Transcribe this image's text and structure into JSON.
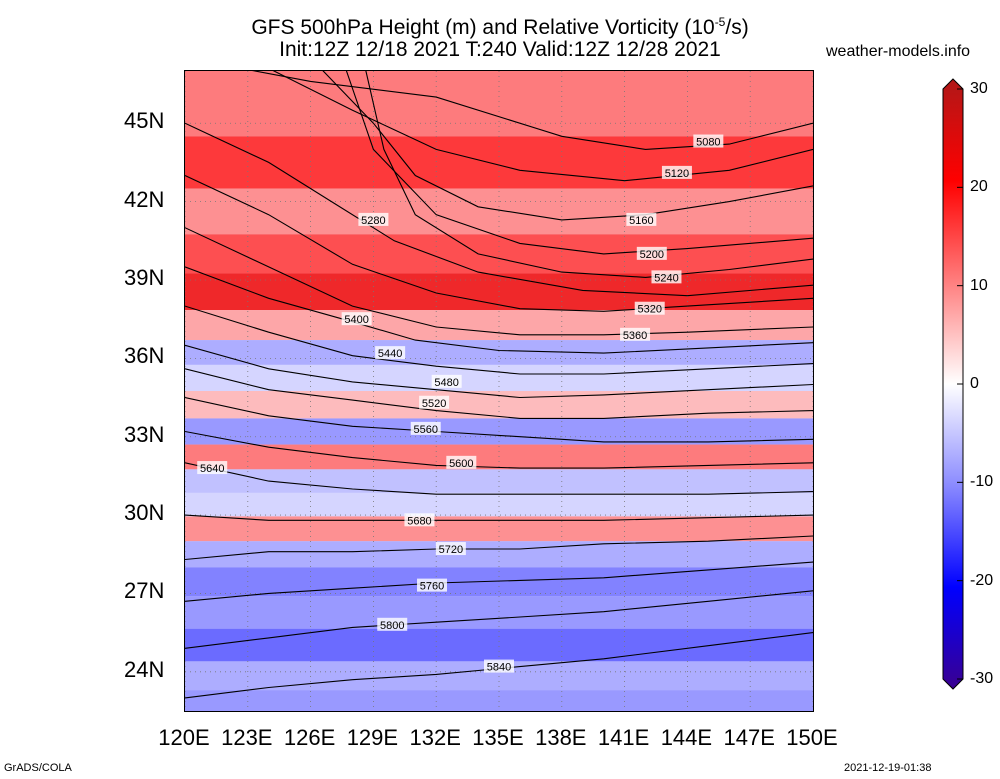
{
  "title_line1": "GFS 500hPa Height (m) and Relative Vorticity (10",
  "title_sup": "-5",
  "title_line1_tail": "/s)",
  "title_line2": "Init:12Z 12/18 2021 T:240 Valid:12Z 12/28 2021",
  "site": "weather-models.info",
  "footer_left": "GrADS/COLA",
  "footer_right": "2021-12-19-01:38",
  "map": {
    "lon_range": [
      120,
      150
    ],
    "lat_range": [
      22.5,
      47
    ],
    "lat_labels": [
      "45N",
      "42N",
      "39N",
      "36N",
      "33N",
      "30N",
      "27N",
      "24N"
    ],
    "lat_values": [
      45,
      42,
      39,
      36,
      33,
      30,
      27,
      24
    ],
    "lon_labels": [
      "120E",
      "123E",
      "126E",
      "129E",
      "132E",
      "135E",
      "138E",
      "141E",
      "144E",
      "147E",
      "150E"
    ],
    "lon_values": [
      120,
      123,
      126,
      129,
      132,
      135,
      138,
      141,
      144,
      147,
      150
    ],
    "contour_interval_m": 40,
    "contours": [
      {
        "label": "5080",
        "pts": [
          [
            120,
            47.5
          ],
          [
            126,
            46.6
          ],
          [
            132,
            46
          ],
          [
            138,
            44.5
          ],
          [
            142,
            44
          ],
          [
            146,
            44.2
          ],
          [
            150,
            45
          ]
        ],
        "lab": [
          145,
          44.3
        ]
      },
      {
        "label": "5120",
        "pts": [
          [
            123,
            47.5
          ],
          [
            128,
            45.5
          ],
          [
            132,
            44
          ],
          [
            136,
            43.2
          ],
          [
            141,
            42.8
          ],
          [
            146,
            43.2
          ],
          [
            150,
            44
          ]
        ],
        "lab": [
          143.5,
          43.1
        ]
      },
      {
        "label": "5160",
        "pts": [
          [
            126,
            47.5
          ],
          [
            129,
            45
          ],
          [
            131,
            43
          ],
          [
            134,
            41.8
          ],
          [
            138,
            41.3
          ],
          [
            142,
            41.5
          ],
          [
            146,
            42
          ],
          [
            150,
            42.6
          ]
        ],
        "lab": [
          141.8,
          41.3
        ]
      },
      {
        "label": "5200",
        "pts": [
          [
            127.5,
            47.5
          ],
          [
            129,
            44
          ],
          [
            132,
            41.5
          ],
          [
            136,
            40.4
          ],
          [
            140,
            40
          ],
          [
            144,
            40.2
          ],
          [
            150,
            40.6
          ]
        ],
        "lab": [
          142.3,
          40
        ]
      },
      {
        "label": "5240",
        "pts": [
          [
            128.5,
            47.5
          ],
          [
            129.5,
            44
          ],
          [
            131,
            41.5
          ],
          [
            134,
            40
          ],
          [
            138,
            39.3
          ],
          [
            142,
            39.1
          ],
          [
            146,
            39.4
          ],
          [
            150,
            39.8
          ]
        ],
        "lab": [
          143,
          39.1
        ]
      },
      {
        "label": "5280",
        "pts": [
          [
            120,
            45
          ],
          [
            124,
            43.5
          ],
          [
            127,
            42
          ],
          [
            130,
            40.5
          ],
          [
            134,
            39.3
          ],
          [
            139,
            38.6
          ],
          [
            144,
            38.4
          ],
          [
            150,
            38.8
          ]
        ],
        "lab": [
          129,
          41.3
        ]
      },
      {
        "label": "5320",
        "pts": [
          [
            120,
            43
          ],
          [
            124,
            41.5
          ],
          [
            128,
            39.6
          ],
          [
            132,
            38.5
          ],
          [
            136,
            37.9
          ],
          [
            140,
            37.8
          ],
          [
            144,
            38
          ],
          [
            150,
            38.3
          ]
        ],
        "lab": [
          142.2,
          37.9
        ]
      },
      {
        "label": "5360",
        "pts": [
          [
            120,
            41
          ],
          [
            124,
            39.5
          ],
          [
            128,
            38
          ],
          [
            132,
            37.2
          ],
          [
            136,
            36.9
          ],
          [
            140,
            36.9
          ],
          [
            144,
            37
          ],
          [
            150,
            37.2
          ]
        ],
        "lab": [
          141.5,
          36.9
        ]
      },
      {
        "label": "5400",
        "pts": [
          [
            120,
            39.5
          ],
          [
            124,
            38.3
          ],
          [
            128,
            37.4
          ],
          [
            131,
            36.7
          ],
          [
            135,
            36.3
          ],
          [
            140,
            36.2
          ],
          [
            145,
            36.4
          ],
          [
            150,
            36.6
          ]
        ],
        "lab": [
          128.2,
          37.5
        ]
      },
      {
        "label": "5440",
        "pts": [
          [
            120,
            38
          ],
          [
            124,
            37
          ],
          [
            128,
            36.1
          ],
          [
            132,
            35.7
          ],
          [
            136,
            35.4
          ],
          [
            140,
            35.4
          ],
          [
            145,
            35.6
          ],
          [
            150,
            35.8
          ]
        ],
        "lab": [
          129.8,
          36.2
        ]
      },
      {
        "label": "5480",
        "pts": [
          [
            120,
            36.5
          ],
          [
            124,
            35.6
          ],
          [
            128,
            35.1
          ],
          [
            132,
            34.8
          ],
          [
            136,
            34.5
          ],
          [
            140,
            34.6
          ],
          [
            145,
            34.8
          ],
          [
            150,
            35
          ]
        ],
        "lab": [
          132.5,
          35.1
        ]
      },
      {
        "label": "5520",
        "pts": [
          [
            120,
            35.6
          ],
          [
            124,
            34.8
          ],
          [
            128,
            34.4
          ],
          [
            132,
            34
          ],
          [
            136,
            33.7
          ],
          [
            140,
            33.7
          ],
          [
            145,
            33.9
          ],
          [
            150,
            34
          ]
        ],
        "lab": [
          131.9,
          34.3
        ]
      },
      {
        "label": "5560",
        "pts": [
          [
            120,
            34.5
          ],
          [
            124,
            33.8
          ],
          [
            128,
            33.4
          ],
          [
            132,
            33.2
          ],
          [
            136,
            33
          ],
          [
            140,
            32.8
          ],
          [
            145,
            32.8
          ],
          [
            150,
            32.9
          ]
        ],
        "lab": [
          131.5,
          33.3
        ]
      },
      {
        "label": "5600",
        "pts": [
          [
            120,
            33.2
          ],
          [
            124,
            32.6
          ],
          [
            128,
            32.2
          ],
          [
            132,
            31.9
          ],
          [
            136,
            31.8
          ],
          [
            140,
            31.8
          ],
          [
            145,
            31.9
          ],
          [
            150,
            32
          ]
        ],
        "lab": [
          133.2,
          32
        ]
      },
      {
        "label": "5640",
        "pts": [
          [
            120,
            32
          ],
          [
            124,
            31.3
          ],
          [
            128,
            31
          ],
          [
            132,
            30.8
          ],
          [
            136,
            30.8
          ],
          [
            140,
            30.8
          ],
          [
            145,
            30.8
          ],
          [
            150,
            30.9
          ]
        ],
        "lab": [
          121.3,
          31.8
        ]
      },
      {
        "label": "5680",
        "pts": [
          [
            120,
            30
          ],
          [
            124,
            29.8
          ],
          [
            128,
            29.8
          ],
          [
            132,
            29.8
          ],
          [
            136,
            29.8
          ],
          [
            140,
            29.8
          ],
          [
            145,
            29.9
          ],
          [
            150,
            30
          ]
        ],
        "lab": [
          131.2,
          29.8
        ]
      },
      {
        "label": "5720",
        "pts": [
          [
            120,
            28.3
          ],
          [
            124,
            28.6
          ],
          [
            128,
            28.6
          ],
          [
            132,
            28.7
          ],
          [
            136,
            28.7
          ],
          [
            140,
            28.9
          ],
          [
            145,
            29
          ],
          [
            150,
            29.2
          ]
        ],
        "lab": [
          132.7,
          28.7
        ]
      },
      {
        "label": "5760",
        "pts": [
          [
            120,
            26.7
          ],
          [
            124,
            27
          ],
          [
            128,
            27.2
          ],
          [
            132,
            27.4
          ],
          [
            136,
            27.5
          ],
          [
            140,
            27.6
          ],
          [
            145,
            27.9
          ],
          [
            150,
            28.2
          ]
        ],
        "lab": [
          131.8,
          27.3
        ]
      },
      {
        "label": "5800",
        "pts": [
          [
            120,
            24.9
          ],
          [
            124,
            25.3
          ],
          [
            128,
            25.7
          ],
          [
            132,
            25.9
          ],
          [
            136,
            26.1
          ],
          [
            140,
            26.3
          ],
          [
            145,
            26.7
          ],
          [
            150,
            27.1
          ]
        ],
        "lab": [
          129.9,
          25.8
        ]
      },
      {
        "label": "5840",
        "pts": [
          [
            120,
            23
          ],
          [
            124,
            23.4
          ],
          [
            128,
            23.7
          ],
          [
            132,
            23.9
          ],
          [
            136,
            24.2
          ],
          [
            140,
            24.5
          ],
          [
            145,
            25
          ],
          [
            150,
            25.5
          ]
        ],
        "lab": [
          135,
          24.2
        ]
      }
    ],
    "vorticity_bands": [
      {
        "lat": 45.5,
        "val": 12
      },
      {
        "lat": 43.5,
        "val": 18
      },
      {
        "lat": 41.5,
        "val": 10
      },
      {
        "lat": 40,
        "val": 16
      },
      {
        "lat": 38.5,
        "val": 22
      },
      {
        "lat": 37.2,
        "val": 8
      },
      {
        "lat": 36.2,
        "val": -8
      },
      {
        "lat": 35.3,
        "val": -4
      },
      {
        "lat": 34.2,
        "val": 6
      },
      {
        "lat": 33.2,
        "val": -10
      },
      {
        "lat": 32.2,
        "val": 12
      },
      {
        "lat": 31.3,
        "val": -6
      },
      {
        "lat": 30.4,
        "val": -4
      },
      {
        "lat": 29.5,
        "val": 10
      },
      {
        "lat": 28.5,
        "val": -8
      },
      {
        "lat": 27.5,
        "val": -12
      },
      {
        "lat": 26.3,
        "val": -10
      },
      {
        "lat": 25,
        "val": -14
      },
      {
        "lat": 23.8,
        "val": -8
      },
      {
        "lat": 22.8,
        "val": -10
      }
    ]
  },
  "colorbar": {
    "labels": [
      "30",
      "20",
      "10",
      "0",
      "-10",
      "-20",
      "-30"
    ],
    "values": [
      30,
      20,
      10,
      0,
      -10,
      -20,
      -30
    ],
    "stops": [
      "#b01818",
      "#ff0000",
      "#ff7f7f",
      "#ffffff",
      "#8a8aff",
      "#0000ff",
      "#3a0090"
    ]
  }
}
